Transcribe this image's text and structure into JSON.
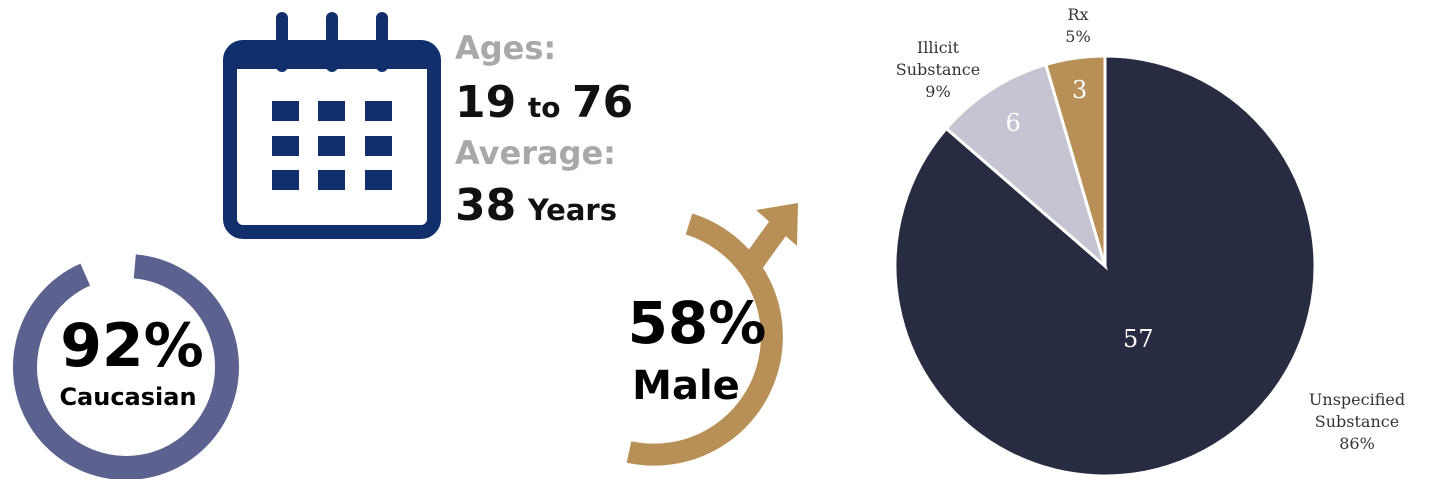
{
  "ages": {
    "label": "Ages:",
    "range_min": "19",
    "range_connector": "to",
    "range_max": "76",
    "average_label": "Average:",
    "average_value": "38",
    "average_unit": "Years"
  },
  "caucasian": {
    "percent_text": "92%",
    "label": "Caucasian",
    "value": 0.92
  },
  "male": {
    "percent_text": "58%",
    "label": "Male",
    "value": 0.58
  },
  "colors": {
    "navy_icon": "#102f6b",
    "ring_slate": "#5b6290",
    "male_gold": "#b98f58",
    "gray_text": "#a8a8a8",
    "pie_unspecified": "#282c42",
    "pie_illicit": "#c6c4d2",
    "pie_rx": "#b98f58"
  },
  "icons": [
    "calendar-icon",
    "male-symbol-icon",
    "percentage-ring-icon"
  ],
  "chart_data": {
    "type": "pie",
    "categories": [
      "Unspecified Substance",
      "Illicit Substance",
      "Rx"
    ],
    "values": [
      57,
      6,
      3
    ],
    "value_labels": [
      "57",
      "6",
      "3"
    ],
    "percent_labels": [
      "86%",
      "9%",
      "5%"
    ],
    "category_lines": [
      [
        "Unspecified",
        "Substance"
      ],
      [
        "Illicit",
        "Substance"
      ],
      [
        "Rx"
      ]
    ],
    "start_angle_deg": 0,
    "direction": "clockwise"
  }
}
